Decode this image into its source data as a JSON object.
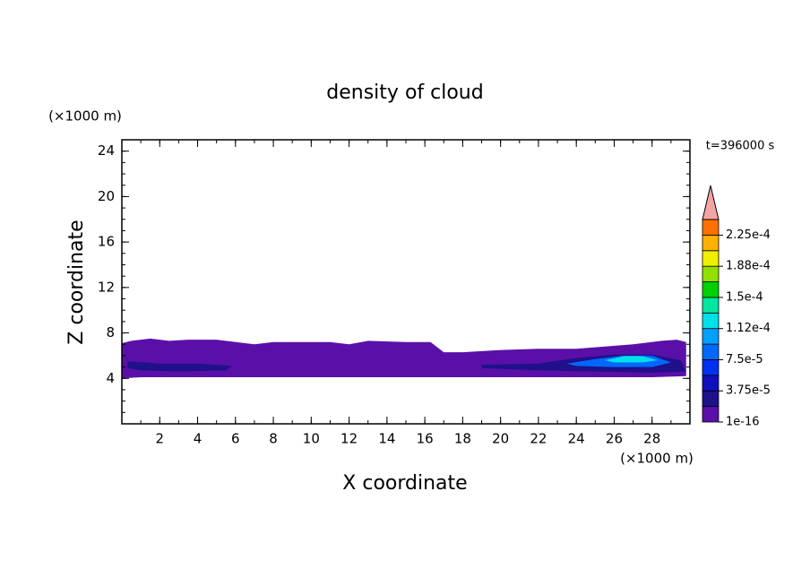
{
  "chart_data": {
    "type": "contour",
    "title": "density of cloud",
    "x_label": "X coordinate",
    "y_label": "Z coordinate",
    "x_unit": "(×1000 m)",
    "y_unit": "(×1000 m)",
    "annotation": "t=396000 s",
    "xlim": [
      0,
      30
    ],
    "xticks": [
      2,
      4,
      6,
      8,
      10,
      12,
      14,
      16,
      18,
      20,
      22,
      24,
      26,
      28
    ],
    "ylim": [
      0,
      25
    ],
    "yticks": [
      4,
      8,
      12,
      16,
      20,
      24
    ],
    "colorbar": {
      "levels": [
        1e-16,
        1.875e-05,
        3.75e-05,
        5.625e-05,
        7.5e-05,
        9.375e-05,
        0.0001125,
        0.00013125,
        0.00015,
        0.00016875,
        0.0001875,
        0.00020625,
        0.000225,
        0.00024375
      ],
      "colors": [
        "#5a10a8",
        "#20108a",
        "#1010c0",
        "#0030f0",
        "#0068ff",
        "#00a0ff",
        "#00e0e8",
        "#00e8a0",
        "#00d000",
        "#90e000",
        "#f0f000",
        "#ffb000",
        "#ff7000"
      ],
      "extend_color": "#f4a4a4",
      "ticks": [
        {
          "value": 1e-16,
          "label": "1e-16"
        },
        {
          "value": 3.75e-05,
          "label": "3.75e-5"
        },
        {
          "value": 7.5e-05,
          "label": "7.5e-5"
        },
        {
          "value": 0.0001125,
          "label": "1.12e-4"
        },
        {
          "value": 0.00015,
          "label": "1.5e-4"
        },
        {
          "value": 0.0001875,
          "label": "1.88e-4"
        },
        {
          "value": 0.000225,
          "label": "2.25e-4"
        }
      ]
    },
    "regions": [
      {
        "value": 1e-16,
        "x": [
          0,
          0.5,
          1.5,
          2.5,
          3.5,
          5,
          7,
          8,
          9,
          11,
          12,
          13,
          15,
          16.3,
          17,
          18,
          20,
          22,
          24,
          25.5,
          27,
          28.5,
          29.3,
          29.8,
          29.8,
          28,
          24,
          20,
          17,
          12,
          8,
          4,
          1,
          0
        ],
        "z": [
          7.1,
          7.3,
          7.5,
          7.3,
          7.4,
          7.4,
          7.0,
          7.2,
          7.2,
          7.2,
          7.0,
          7.3,
          7.2,
          7.2,
          6.3,
          6.3,
          6.5,
          6.6,
          6.6,
          6.8,
          7.0,
          7.3,
          7.4,
          7.2,
          4.2,
          4.1,
          4.1,
          4.1,
          4.1,
          4.1,
          4.1,
          4.1,
          4.1,
          4.0
        ]
      },
      {
        "value": 1.875e-05,
        "x": [
          0.3,
          2,
          4,
          5.8,
          5.5,
          3,
          1,
          0.3
        ],
        "z": [
          5.5,
          5.3,
          5.3,
          5.1,
          4.7,
          4.6,
          4.7,
          4.9
        ]
      },
      {
        "value": 1.875e-05,
        "x": [
          19,
          22,
          24,
          26,
          28,
          29.5,
          29.8,
          28,
          25,
          22,
          19
        ],
        "z": [
          5.2,
          5.3,
          5.8,
          6.1,
          6.1,
          5.6,
          4.6,
          4.5,
          4.6,
          4.7,
          4.9
        ]
      },
      {
        "value": 7.5e-05,
        "x": [
          23.5,
          25,
          26.5,
          28,
          29,
          28,
          26,
          24
        ],
        "z": [
          5.3,
          5.7,
          6.0,
          6.0,
          5.4,
          5.0,
          5.0,
          5.1
        ]
      },
      {
        "value": 0.0001125,
        "x": [
          25.5,
          26.5,
          27.5,
          28.3,
          27.5,
          26
        ],
        "z": [
          5.6,
          5.95,
          5.95,
          5.6,
          5.4,
          5.4
        ]
      }
    ]
  }
}
